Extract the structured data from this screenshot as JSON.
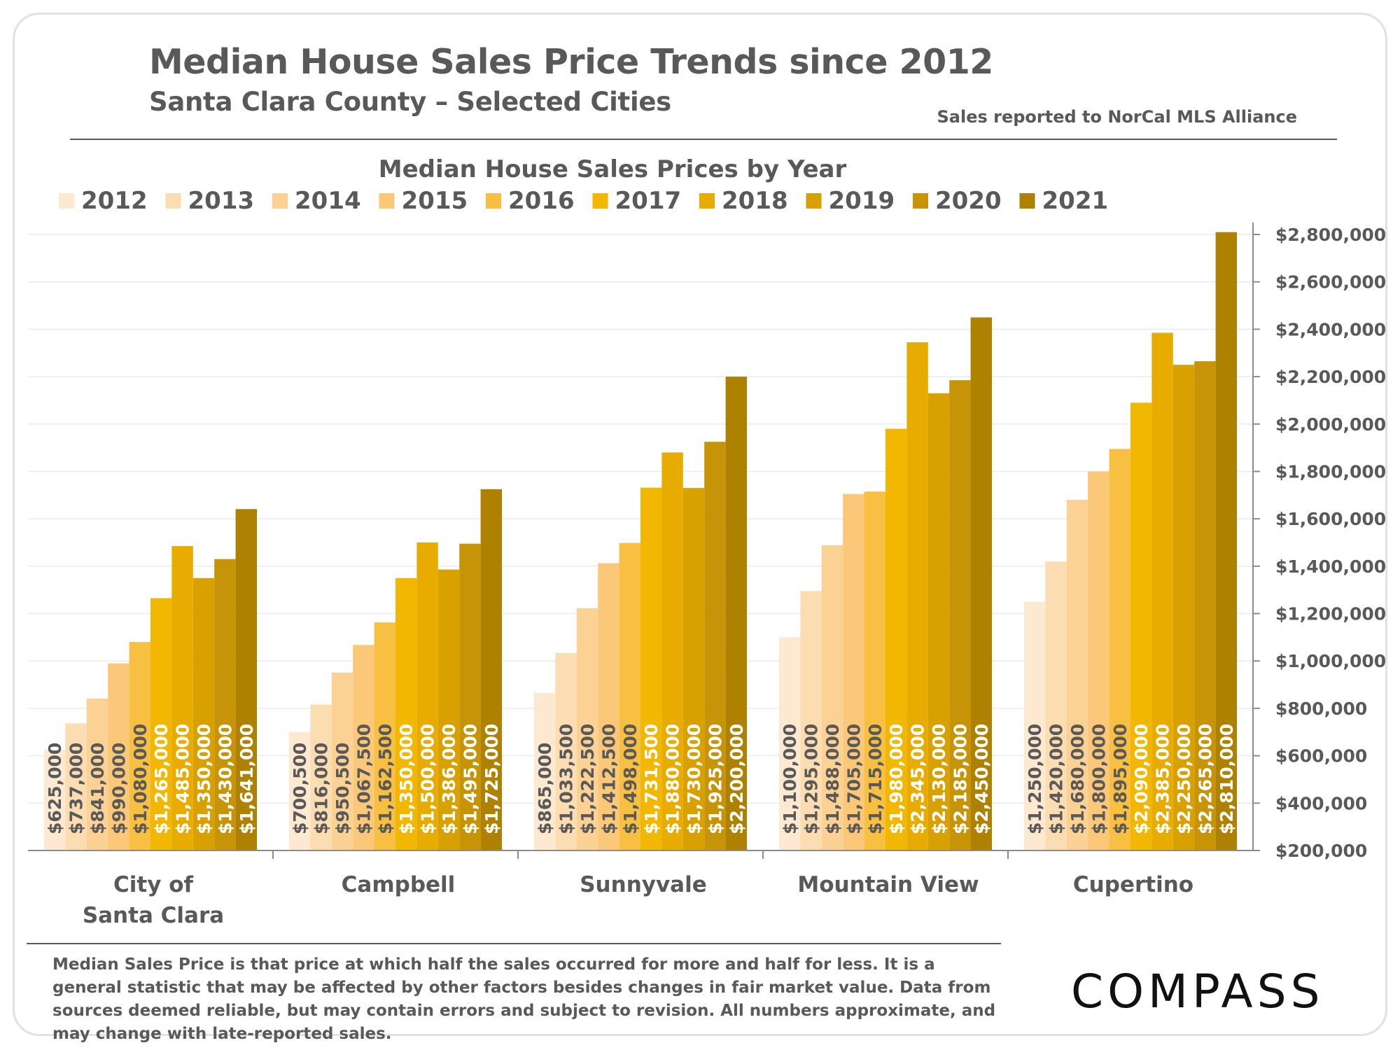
{
  "header": {
    "title": "Median House Sales Price Trends since 2012",
    "subtitle": "Santa Clara County – Selected Cities",
    "source": "Sales reported to NorCal MLS Alliance"
  },
  "footer": {
    "note": "Median Sales Price is that price at which half the sales occurred for more and half for less. It is a general statistic that may be affected by other factors besides changes in fair market value. Data from sources deemed reliable, but may contain errors and subject to revision.  All numbers approximate, and may change with late-reported sales.",
    "logo": "COMPASS"
  },
  "chart_data": {
    "type": "bar",
    "title": "Median House Sales Prices by Year",
    "categories": [
      "City of Santa Clara",
      "Campbell",
      "Sunnyvale",
      "Mountain View",
      "Cupertino"
    ],
    "category_lines": [
      [
        "City of",
        "Santa Clara"
      ],
      [
        "Campbell"
      ],
      [
        "Sunnyvale"
      ],
      [
        "Mountain View"
      ],
      [
        "Cupertino"
      ]
    ],
    "series": [
      {
        "name": "2012",
        "color": "#FDE9CF",
        "values": [
          625000,
          700500,
          865000,
          1100000,
          1250000
        ]
      },
      {
        "name": "2013",
        "color": "#FCDDB2",
        "values": [
          737000,
          816000,
          1033500,
          1295000,
          1420000
        ]
      },
      {
        "name": "2014",
        "color": "#FBD294",
        "values": [
          841000,
          950500,
          1222500,
          1488000,
          1680000
        ]
      },
      {
        "name": "2015",
        "color": "#FAC878",
        "values": [
          990000,
          1067500,
          1412500,
          1705000,
          1800000
        ]
      },
      {
        "name": "2016",
        "color": "#F8C043",
        "values": [
          1080000,
          1162500,
          1498000,
          1715000,
          1895000
        ]
      },
      {
        "name": "2017",
        "color": "#F2B700",
        "values": [
          1265000,
          1350000,
          1731500,
          1980000,
          2090000
        ]
      },
      {
        "name": "2018",
        "color": "#E8AC00",
        "values": [
          1485000,
          1500000,
          1880000,
          2345000,
          2385000
        ]
      },
      {
        "name": "2019",
        "color": "#D9A100",
        "values": [
          1350000,
          1386000,
          1730000,
          2130000,
          2250000
        ]
      },
      {
        "name": "2020",
        "color": "#C69406",
        "values": [
          1430000,
          1495000,
          1925000,
          2185000,
          2265000
        ]
      },
      {
        "name": "2021",
        "color": "#AE8200",
        "values": [
          1641000,
          1725000,
          2200000,
          2450000,
          2810000
        ]
      }
    ],
    "data_labels": [
      [
        "$625,000",
        "$737,000",
        "$841,000",
        "$990,000",
        "$1,080,000",
        "$1,265,000",
        "$1,485,000",
        "$1,350,000",
        "$1,430,000",
        "$1,641,000"
      ],
      [
        "$700,500",
        "$816,000",
        "$950,500",
        "$1,067,500",
        "$1,162,500",
        "$1,350,000",
        "$1,500,000",
        "$1,386,000",
        "$1,495,000",
        "$1,725,000"
      ],
      [
        "$865,000",
        "$1,033,500",
        "$1,222,500",
        "$1,412,500",
        "$1,498,000",
        "$1,731,500",
        "$1,880,000",
        "$1,730,000",
        "$1,925,000",
        "$2,200,000"
      ],
      [
        "$1,100,000",
        "$1,295,000",
        "$1,488,000",
        "$1,705,000",
        "$1,715,000",
        "$1,980,000",
        "$2,345,000",
        "$2,130,000",
        "$2,185,000",
        "$2,450,000"
      ],
      [
        "$1,250,000",
        "$1,420,000",
        "$1,680,000",
        "$1,800,000",
        "$1,895,000",
        "$2,090,000",
        "$2,385,000",
        "$2,250,000",
        "$2,265,000",
        "$2,810,000"
      ]
    ],
    "ylim": [
      200000,
      2800000
    ],
    "yticks": [
      200000,
      400000,
      600000,
      800000,
      1000000,
      1200000,
      1400000,
      1600000,
      1800000,
      2000000,
      2200000,
      2400000,
      2600000,
      2800000
    ],
    "ytick_labels": [
      "$200,000",
      "$400,000",
      "$600,000",
      "$800,000",
      "$1,000,000",
      "$1,200,000",
      "$1,400,000",
      "$1,600,000",
      "$1,800,000",
      "$2,000,000",
      "$2,200,000",
      "$2,400,000",
      "$2,600,000",
      "$2,800,000"
    ],
    "y_axis_side": "right",
    "grid": true,
    "legend_position": "top"
  }
}
